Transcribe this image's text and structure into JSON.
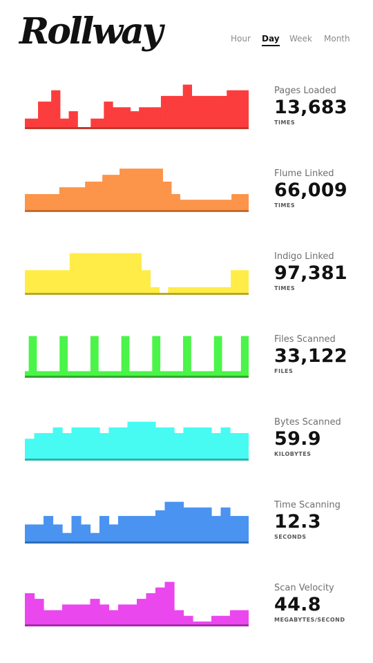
{
  "app": {
    "logo": "Rollway"
  },
  "tabs": [
    {
      "label": "Hour",
      "active": false
    },
    {
      "label": "Day",
      "active": true
    },
    {
      "label": "Week",
      "active": false
    },
    {
      "label": "Month",
      "active": false
    }
  ],
  "metrics": [
    {
      "label": "Pages Loaded",
      "value": "13,683",
      "unit": "TIMES",
      "color": "#fc3d3d",
      "baseline_color": "#c0392b",
      "levels": [
        0.15,
        0.15,
        0.15,
        0.45,
        0.45,
        0.45,
        0.65,
        0.65,
        0.15,
        0.15,
        0.28,
        0.28,
        null,
        null,
        null,
        0.15,
        0.15,
        0.15,
        0.45,
        0.45,
        0.35,
        0.35,
        0.35,
        0.35,
        0.28,
        0.28,
        0.35,
        0.35,
        0.35,
        0.35,
        0.35,
        0.55,
        0.55,
        0.55,
        0.55,
        0.55,
        0.75,
        0.75,
        0.55,
        0.55,
        0.55,
        0.55,
        0.55,
        0.55,
        0.55,
        0.55,
        0.65,
        0.65,
        0.65,
        0.65,
        0.65
      ]
    },
    {
      "label": "Flume Linked",
      "value": "66,009",
      "unit": "TIMES",
      "color": "#fc944a",
      "baseline_color": "#c96a28",
      "levels": [
        0.28,
        0.28,
        0.28,
        0.28,
        0.28,
        0.28,
        0.28,
        0.28,
        0.4,
        0.4,
        0.4,
        0.4,
        0.4,
        0.4,
        0.5,
        0.5,
        0.5,
        0.5,
        0.62,
        0.62,
        0.62,
        0.62,
        0.73,
        0.73,
        0.73,
        0.73,
        0.73,
        0.73,
        0.73,
        0.73,
        0.73,
        0.73,
        0.5,
        0.5,
        0.28,
        0.28,
        0.18,
        0.18,
        0.18,
        0.18,
        0.18,
        0.18,
        0.18,
        0.18,
        0.18,
        0.18,
        0.18,
        0.18,
        0.28,
        0.28,
        0.28,
        0.28
      ]
    },
    {
      "label": "Indigo Linked",
      "value": "97,381",
      "unit": "TIMES",
      "color": "#ffec47",
      "baseline_color": "#b8a72a",
      "levels": [
        0.4,
        0.4,
        0.4,
        0.4,
        0.4,
        0.4,
        0.4,
        0.4,
        0.4,
        0.4,
        0.7,
        0.7,
        0.7,
        0.7,
        0.7,
        0.7,
        0.7,
        0.7,
        0.7,
        0.7,
        0.7,
        0.7,
        0.7,
        0.7,
        0.7,
        0.7,
        0.4,
        0.4,
        0.1,
        0.1,
        null,
        null,
        0.1,
        0.1,
        0.1,
        0.1,
        0.1,
        0.1,
        0.1,
        0.1,
        0.1,
        0.1,
        0.1,
        0.1,
        0.1,
        0.1,
        0.4,
        0.4,
        0.4,
        0.4
      ]
    },
    {
      "label": "Files Scanned",
      "value": "33,122",
      "unit": "FILES",
      "color": "#4bf448",
      "baseline_color": "#2ea82b",
      "levels": [
        0.08,
        0.7,
        0.7,
        0.08,
        0.08,
        0.08,
        0.08,
        0.08,
        0.08,
        0.7,
        0.7,
        0.08,
        0.08,
        0.08,
        0.08,
        0.08,
        0.08,
        0.7,
        0.7,
        0.08,
        0.08,
        0.08,
        0.08,
        0.08,
        0.08,
        0.7,
        0.7,
        0.08,
        0.08,
        0.08,
        0.08,
        0.08,
        0.08,
        0.7,
        0.7,
        0.08,
        0.08,
        0.08,
        0.08,
        0.08,
        0.08,
        0.7,
        0.7,
        0.08,
        0.08,
        0.08,
        0.08,
        0.08,
        0.08,
        0.7,
        0.7,
        0.08,
        0.08,
        0.08,
        0.08,
        0.08,
        0.7,
        0.7
      ]
    },
    {
      "label": "Bytes Scanned",
      "value": "59.9",
      "unit": "KILOBYTES",
      "color": "#47fbf2",
      "baseline_color": "#2cb3ad",
      "levels": [
        0.35,
        0.35,
        0.45,
        0.45,
        0.45,
        0.45,
        0.55,
        0.55,
        0.45,
        0.45,
        0.55,
        0.55,
        0.55,
        0.55,
        0.55,
        0.55,
        0.45,
        0.45,
        0.55,
        0.55,
        0.55,
        0.55,
        0.65,
        0.65,
        0.65,
        0.65,
        0.65,
        0.65,
        0.55,
        0.55,
        0.55,
        0.55,
        0.45,
        0.45,
        0.55,
        0.55,
        0.55,
        0.55,
        0.55,
        0.55,
        0.45,
        0.45,
        0.55,
        0.55,
        0.45,
        0.45,
        0.45,
        0.45
      ]
    },
    {
      "label": "Time Scanning",
      "value": "12.3",
      "unit": "SECONDS",
      "color": "#4a93f0",
      "baseline_color": "#2e6db8",
      "levels": [
        0.3,
        0.3,
        0.3,
        0.3,
        0.45,
        0.45,
        0.3,
        0.3,
        0.15,
        0.15,
        0.45,
        0.45,
        0.3,
        0.3,
        0.15,
        0.15,
        0.45,
        0.45,
        0.3,
        0.3,
        0.45,
        0.45,
        0.45,
        0.45,
        0.45,
        0.45,
        0.45,
        0.45,
        0.55,
        0.55,
        0.7,
        0.7,
        0.7,
        0.7,
        0.6,
        0.6,
        0.6,
        0.6,
        0.6,
        0.6,
        0.45,
        0.45,
        0.6,
        0.6,
        0.45,
        0.45,
        0.45,
        0.45
      ]
    },
    {
      "label": "Scan Velocity",
      "value": "44.8",
      "unit": "MEGABYTES/SECOND",
      "color": "#ea47ef",
      "baseline_color": "#a62caa",
      "levels": [
        0.55,
        0.55,
        0.45,
        0.45,
        0.25,
        0.25,
        0.25,
        0.25,
        0.35,
        0.35,
        0.35,
        0.35,
        0.35,
        0.35,
        0.45,
        0.45,
        0.35,
        0.35,
        0.25,
        0.25,
        0.35,
        0.35,
        0.35,
        0.35,
        0.45,
        0.45,
        0.55,
        0.55,
        0.65,
        0.65,
        0.75,
        0.75,
        0.25,
        0.25,
        0.15,
        0.15,
        0.05,
        0.05,
        0.05,
        0.05,
        0.15,
        0.15,
        0.15,
        0.15,
        0.25,
        0.25,
        0.25,
        0.25
      ]
    }
  ]
}
